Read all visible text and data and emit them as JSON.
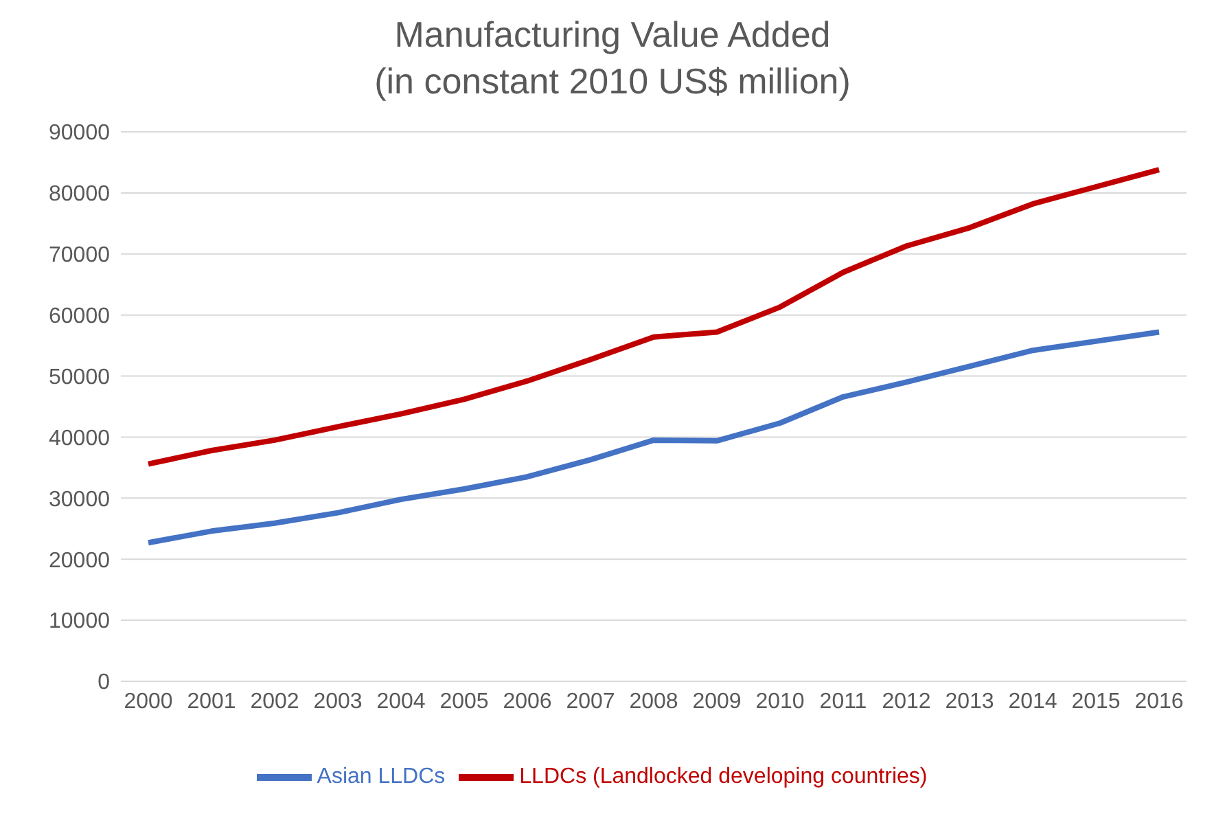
{
  "chart_data": {
    "type": "line",
    "title": "Manufacturing Value Added",
    "subtitle": "(in constant 2010 US$ million)",
    "categories": [
      "2000",
      "2001",
      "2002",
      "2003",
      "2004",
      "2005",
      "2006",
      "2007",
      "2008",
      "2009",
      "2010",
      "2011",
      "2012",
      "2013",
      "2014",
      "2015",
      "2016"
    ],
    "series": [
      {
        "name": "Asian LLDCs",
        "color": "#4472c4",
        "values": [
          22700,
          24600,
          25900,
          27600,
          29800,
          31500,
          33500,
          36300,
          39500,
          39400,
          42300,
          46600,
          49000,
          51600,
          54200,
          55700,
          57200
        ]
      },
      {
        "name": "LLDCs (Landlocked developing countries)",
        "color": "#c00000",
        "values": [
          35600,
          37800,
          39500,
          41700,
          43800,
          46200,
          49200,
          52700,
          56400,
          57200,
          61300,
          67000,
          71300,
          74300,
          78200,
          81000,
          83800
        ]
      }
    ],
    "ylim": [
      0,
      90000
    ],
    "yticks": [
      0,
      10000,
      20000,
      30000,
      40000,
      50000,
      60000,
      70000,
      80000,
      90000
    ],
    "grid": "y",
    "legend": "bottom",
    "marker": "none",
    "line_style": "solid"
  }
}
